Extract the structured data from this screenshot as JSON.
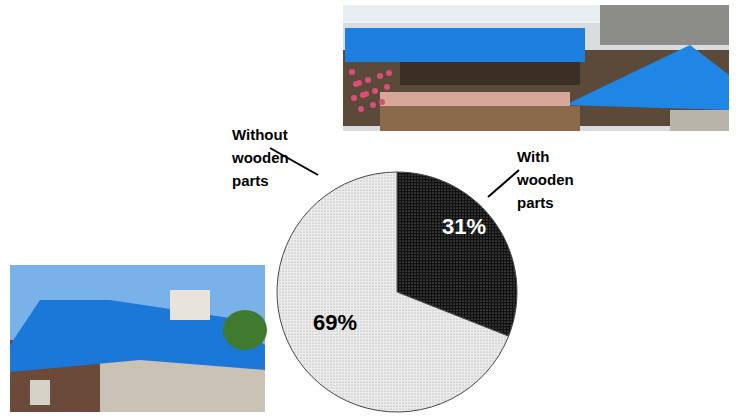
{
  "chart_data": {
    "type": "pie",
    "categories": [
      "With wooden parts",
      "Without wooden parts"
    ],
    "values": [
      31,
      69
    ],
    "value_labels": [
      "31%",
      "69%"
    ],
    "colors": [
      "#111111",
      "#ececec"
    ],
    "data_labels": true
  }
}
